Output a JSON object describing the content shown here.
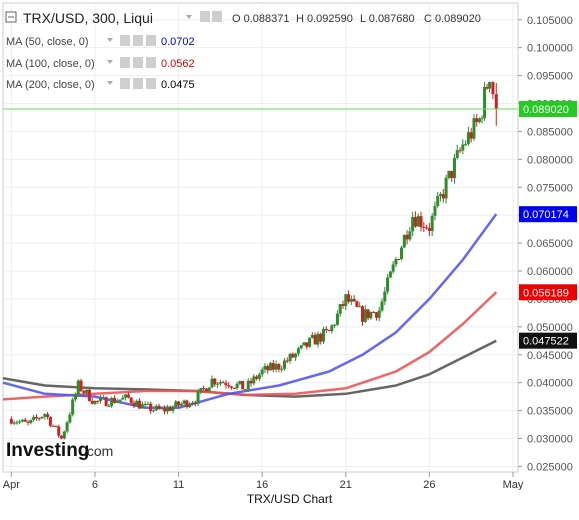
{
  "header": {
    "symbol_label": "TRX/USD, 300, Liqui",
    "ohlc": [
      {
        "key": "O",
        "value": "0.088371"
      },
      {
        "key": "H",
        "value": "0.092590"
      },
      {
        "key": "L",
        "value": "0.087680"
      },
      {
        "key": "C",
        "value": "0.089020"
      }
    ],
    "indicators": [
      {
        "label": "MA (50, close, 0)",
        "value": "0.0702",
        "color": "#0000cc"
      },
      {
        "label": "MA (100, close, 0)",
        "value": "0.0562",
        "color": "#dd0000"
      },
      {
        "label": "MA (200, close, 0)",
        "value": "0.0475",
        "color": "#000000"
      }
    ]
  },
  "brand": {
    "name": "Investing",
    "suffix": ".com"
  },
  "caption": "TRX/USD Chart",
  "price_labels": {
    "last": {
      "value": "0.089020",
      "color": "#22cc22"
    },
    "ma50": {
      "value": "0.070174",
      "color": "#0000ee"
    },
    "ma100": {
      "value": "0.056189",
      "color": "#ee0000"
    },
    "ma200": {
      "value": "0.047522",
      "color": "#111111"
    }
  },
  "colors": {
    "up": "#2e8b2e",
    "down": "#cc2222",
    "ma50": "#5555ee",
    "ma100": "#ee5555",
    "ma200": "#555555"
  },
  "chart_data": {
    "type": "candlestick",
    "x_axis_labels": [
      {
        "label": "Apr",
        "day": 1
      },
      {
        "label": "6",
        "day": 6
      },
      {
        "label": "11",
        "day": 11
      },
      {
        "label": "16",
        "day": 16
      },
      {
        "label": "21",
        "day": 21
      },
      {
        "label": "26",
        "day": 26
      },
      {
        "label": "May",
        "day": 31
      }
    ],
    "x_range_days": [
      0.5,
      31.3
    ],
    "ylim": [
      0.024,
      0.108
    ],
    "y_ticks": [
      "0.025000",
      "0.030000",
      "0.035000",
      "0.040000",
      "0.045000",
      "0.050000",
      "0.055000",
      "0.060000",
      "0.065000",
      "0.070000",
      "0.075000",
      "0.080000",
      "0.085000",
      "0.090000",
      "0.095000",
      "0.100000",
      "0.105000"
    ],
    "last_price": 0.08902,
    "candles_daily_close": [
      {
        "day": 1,
        "close": 0.0335
      },
      {
        "day": 2,
        "close": 0.0325
      },
      {
        "day": 3,
        "close": 0.0345
      },
      {
        "day": 4,
        "close": 0.03
      },
      {
        "day": 5,
        "close": 0.0395
      },
      {
        "day": 6,
        "close": 0.0365
      },
      {
        "day": 7,
        "close": 0.0368
      },
      {
        "day": 8,
        "close": 0.0372
      },
      {
        "day": 9,
        "close": 0.0355
      },
      {
        "day": 10,
        "close": 0.035
      },
      {
        "day": 11,
        "close": 0.036
      },
      {
        "day": 12,
        "close": 0.037
      },
      {
        "day": 13,
        "close": 0.0405
      },
      {
        "day": 14,
        "close": 0.04
      },
      {
        "day": 15,
        "close": 0.039
      },
      {
        "day": 16,
        "close": 0.042
      },
      {
        "day": 17,
        "close": 0.043
      },
      {
        "day": 18,
        "close": 0.045
      },
      {
        "day": 19,
        "close": 0.0475
      },
      {
        "day": 20,
        "close": 0.049
      },
      {
        "day": 21,
        "close": 0.055
      },
      {
        "day": 22,
        "close": 0.052
      },
      {
        "day": 23,
        "close": 0.053
      },
      {
        "day": 24,
        "close": 0.062
      },
      {
        "day": 25,
        "close": 0.07
      },
      {
        "day": 26,
        "close": 0.068
      },
      {
        "day": 27,
        "close": 0.0755
      },
      {
        "day": 28,
        "close": 0.0825
      },
      {
        "day": 29,
        "close": 0.087
      },
      {
        "day": 29.6,
        "close": 0.0955
      },
      {
        "day": 30,
        "close": 0.089
      }
    ],
    "ma50": [
      {
        "day": 0.5,
        "value": 0.04
      },
      {
        "day": 3,
        "value": 0.038
      },
      {
        "day": 6,
        "value": 0.0375
      },
      {
        "day": 9,
        "value": 0.0355
      },
      {
        "day": 11,
        "value": 0.0355
      },
      {
        "day": 14,
        "value": 0.038
      },
      {
        "day": 17,
        "value": 0.0395
      },
      {
        "day": 20,
        "value": 0.042
      },
      {
        "day": 22,
        "value": 0.045
      },
      {
        "day": 24,
        "value": 0.049
      },
      {
        "day": 26,
        "value": 0.055
      },
      {
        "day": 28,
        "value": 0.062
      },
      {
        "day": 30,
        "value": 0.0702
      }
    ],
    "ma100": [
      {
        "day": 0.5,
        "value": 0.037
      },
      {
        "day": 3,
        "value": 0.0375
      },
      {
        "day": 6,
        "value": 0.038
      },
      {
        "day": 9,
        "value": 0.0385
      },
      {
        "day": 12,
        "value": 0.0385
      },
      {
        "day": 15,
        "value": 0.0378
      },
      {
        "day": 18,
        "value": 0.038
      },
      {
        "day": 21,
        "value": 0.039
      },
      {
        "day": 24,
        "value": 0.042
      },
      {
        "day": 26,
        "value": 0.0455
      },
      {
        "day": 28,
        "value": 0.0505
      },
      {
        "day": 30,
        "value": 0.0562
      }
    ],
    "ma200": [
      {
        "day": 0.5,
        "value": 0.0408
      },
      {
        "day": 3,
        "value": 0.0395
      },
      {
        "day": 6,
        "value": 0.039
      },
      {
        "day": 9,
        "value": 0.0388
      },
      {
        "day": 12,
        "value": 0.0385
      },
      {
        "day": 15,
        "value": 0.0378
      },
      {
        "day": 18,
        "value": 0.0375
      },
      {
        "day": 21,
        "value": 0.038
      },
      {
        "day": 24,
        "value": 0.0395
      },
      {
        "day": 26,
        "value": 0.0415
      },
      {
        "day": 28,
        "value": 0.0445
      },
      {
        "day": 30,
        "value": 0.0475
      }
    ]
  }
}
